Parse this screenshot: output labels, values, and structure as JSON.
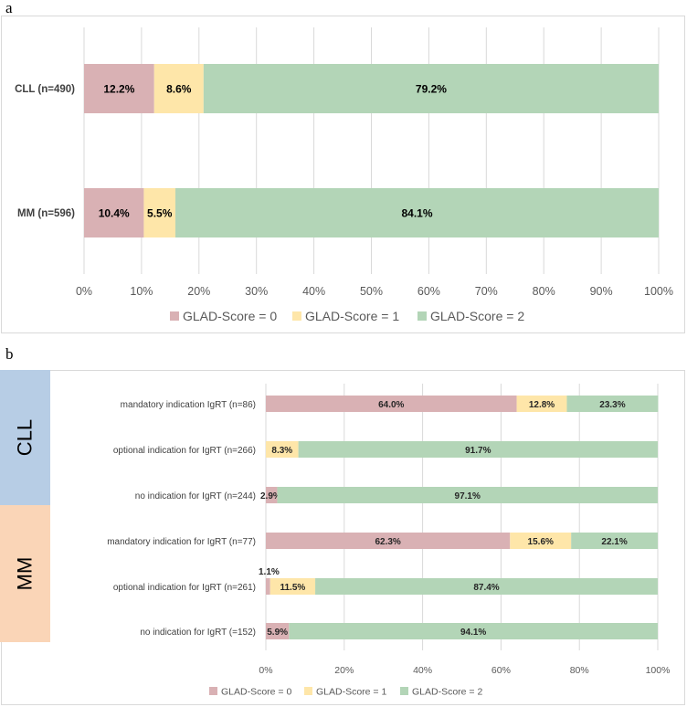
{
  "colors": {
    "score0": "#d9b1b4",
    "score1": "#fee6a9",
    "score2": "#b3d5b7",
    "cll_group": "#b7cde5",
    "mm_group": "#fad5b7",
    "grid": "#d9d9d9",
    "border": "#d9d9d9"
  },
  "chart_data": [
    {
      "panel": "a",
      "type": "bar",
      "orientation": "horizontal",
      "stacked": true,
      "xlim": [
        0,
        100
      ],
      "tick_labels": [
        "0%",
        "10%",
        "20%",
        "30%",
        "40%",
        "50%",
        "60%",
        "70%",
        "80%",
        "90%",
        "100%"
      ],
      "categories": [
        "CLL (n=490)",
        "MM (n=596)"
      ],
      "series": [
        {
          "name": "GLAD-Score = 0",
          "values": [
            12.2,
            10.4
          ],
          "labels": [
            "12.2%",
            "10.4%"
          ]
        },
        {
          "name": "GLAD-Score = 1",
          "values": [
            8.6,
            5.5
          ],
          "labels": [
            "8.6%",
            "5.5%"
          ]
        },
        {
          "name": "GLAD-Score = 2",
          "values": [
            79.2,
            84.1
          ],
          "labels": [
            "79.2%",
            "84.1%"
          ]
        }
      ],
      "legend": [
        "GLAD-Score = 0",
        "GLAD-Score = 1",
        "GLAD-Score = 2"
      ],
      "legend_position": "bottom"
    },
    {
      "panel": "b",
      "type": "bar",
      "orientation": "horizontal",
      "stacked": true,
      "xlim": [
        0,
        100
      ],
      "tick_labels": [
        "0%",
        "20%",
        "40%",
        "60%",
        "80%",
        "100%"
      ],
      "groups": [
        {
          "name": "CLL",
          "rows": [
            0,
            1,
            2
          ]
        },
        {
          "name": "MM",
          "rows": [
            3,
            4,
            5
          ]
        }
      ],
      "categories": [
        "mandatory indication IgRT (n=86)",
        "optional indication for IgRT (n=266)",
        "no indication for IgRT (n=244)",
        "mandatory indication for IgRT (n=77)",
        "optional indication for IgRT (n=261)",
        "no indication for IgRT (=152)"
      ],
      "series": [
        {
          "name": "GLAD-Score = 0",
          "values": [
            64.0,
            0,
            2.9,
            62.3,
            1.1,
            5.9
          ],
          "labels": [
            "64.0%",
            "",
            "2.9%",
            "62.3%",
            "1.1%",
            "5.9%"
          ]
        },
        {
          "name": "GLAD-Score = 1",
          "values": [
            12.8,
            8.3,
            0,
            15.6,
            11.5,
            0
          ],
          "labels": [
            "12.8%",
            "8.3%",
            "",
            "15.6%",
            "11.5%",
            ""
          ]
        },
        {
          "name": "GLAD-Score = 2",
          "values": [
            23.3,
            91.7,
            97.1,
            22.1,
            87.4,
            94.1
          ],
          "labels": [
            "23.3%",
            "91.7%",
            "97.1%",
            "22.1%",
            "87.4%",
            "94.1%"
          ]
        }
      ],
      "legend": [
        "GLAD-Score = 0",
        "GLAD-Score = 1",
        "GLAD-Score = 2"
      ],
      "legend_position": "bottom"
    }
  ]
}
